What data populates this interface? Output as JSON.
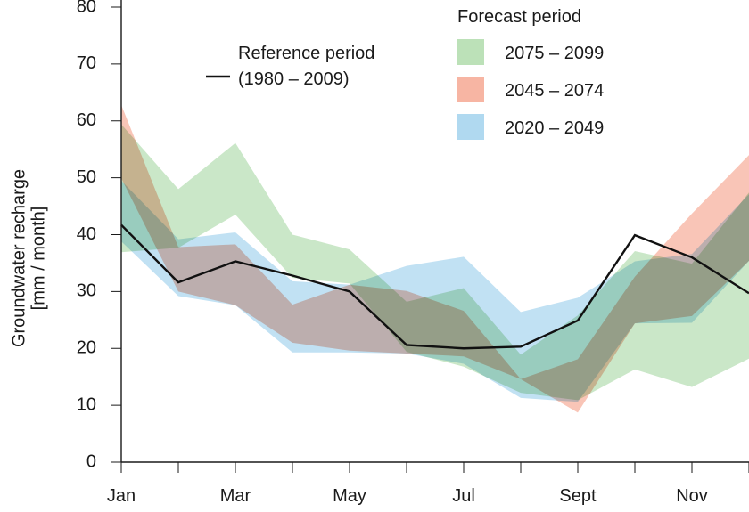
{
  "chart_data": {
    "type": "area",
    "title": "",
    "ylabel_line1": "Groundwater recharge",
    "ylabel_line2": "[mm / month]",
    "xlabel": "",
    "ylim": [
      0,
      80
    ],
    "yticks": [
      0,
      10,
      20,
      30,
      40,
      50,
      60,
      70,
      80
    ],
    "x_months": [
      1,
      2,
      3,
      4,
      5,
      6,
      7,
      8,
      9,
      10,
      11,
      12
    ],
    "xlim": [
      1,
      12
    ],
    "xtick_labels": [
      {
        "month": 1,
        "label": "Jan"
      },
      {
        "month": 3,
        "label": "Mar"
      },
      {
        "month": 5,
        "label": "May"
      },
      {
        "month": 7,
        "label": "Jul"
      },
      {
        "month": 9,
        "label": "Sept"
      },
      {
        "month": 11,
        "label": "Nov"
      }
    ],
    "legend": {
      "forecast_title": "Forecast period",
      "reference_label_line1": "Reference period",
      "reference_label_line2": "(1980 – 2009)"
    },
    "reference": {
      "name": "Reference period (1980 – 2009)",
      "color": "#111111",
      "values": [
        41.7,
        31.6,
        35.3,
        32.8,
        30.0,
        20.6,
        20.0,
        20.3,
        24.9,
        39.9,
        36.0,
        29.7
      ]
    },
    "series": [
      {
        "name": "2020 – 2049",
        "color": "#8ec9ea",
        "upper": [
          49.5,
          39.2,
          40.4,
          31.8,
          31.2,
          34.5,
          36.1,
          26.4,
          28.9,
          35.3,
          36.6,
          47.1
        ],
        "lower": [
          38.8,
          29.2,
          27.6,
          19.3,
          19.3,
          19.1,
          17.3,
          11.3,
          10.6,
          24.4,
          24.5,
          35.4
        ]
      },
      {
        "name": "2045 – 2074",
        "color": "#f4967c",
        "upper": [
          62.8,
          37.8,
          38.3,
          27.7,
          31.2,
          30.1,
          26.6,
          14.6,
          18.1,
          32.6,
          43.7,
          54.0
        ],
        "lower": [
          49.9,
          30.0,
          27.6,
          21.0,
          19.6,
          19.1,
          18.6,
          14.6,
          8.7,
          24.4,
          25.7,
          35.4
        ]
      },
      {
        "name": "2075 – 2099",
        "color": "#9fd49a",
        "upper": [
          59.4,
          48.0,
          56.1,
          40.0,
          37.4,
          28.2,
          30.6,
          18.9,
          25.8,
          37.1,
          34.9,
          47.4
        ],
        "lower": [
          36.9,
          37.7,
          43.5,
          32.4,
          31.4,
          19.4,
          16.8,
          12.2,
          10.9,
          16.3,
          13.2,
          18.2
        ]
      }
    ]
  }
}
